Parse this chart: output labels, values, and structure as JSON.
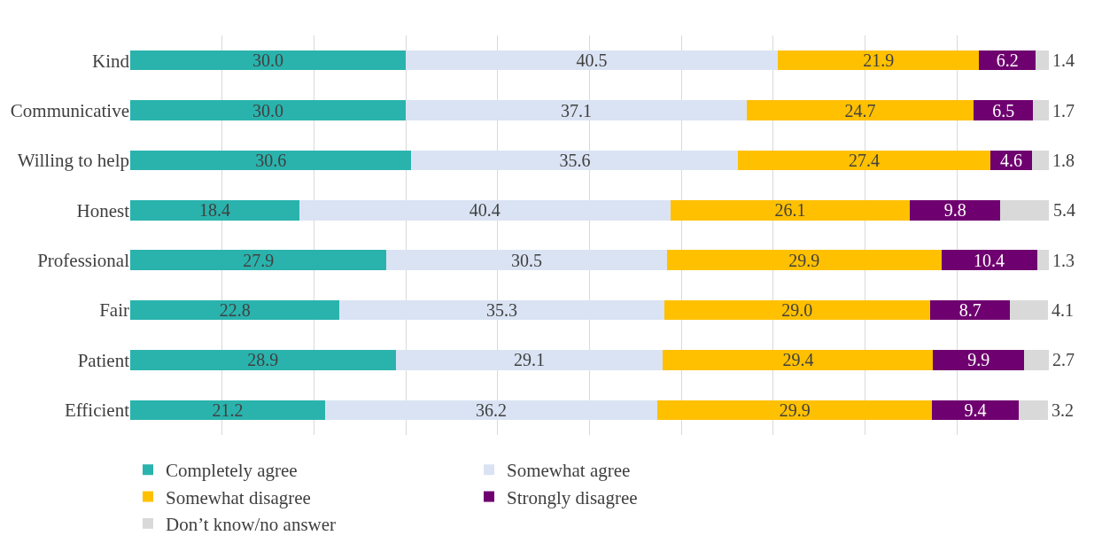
{
  "chart_data": {
    "type": "bar",
    "orientation": "horizontal",
    "stacked": true,
    "categories": [
      "Kind",
      "Communicative",
      "Willing to help",
      "Honest",
      "Professional",
      "Fair",
      "Patient",
      "Efficient"
    ],
    "series": [
      {
        "name": "Completely agree",
        "color": "#2ab3ad",
        "values": [
          30.0,
          30.0,
          30.6,
          18.4,
          27.9,
          22.8,
          28.9,
          21.2
        ],
        "value_labels": [
          "30.0",
          "30.0",
          "30.6",
          "18.4",
          "27.9",
          "22.8",
          "28.9",
          "21.2"
        ]
      },
      {
        "name": "Somewhat agree",
        "color": "#dae3f3",
        "values": [
          40.5,
          37.1,
          35.6,
          40.4,
          30.5,
          35.3,
          29.1,
          36.2
        ],
        "value_labels": [
          "40.5",
          "37.1",
          "35.6",
          "40.4",
          "30.5",
          "35.3",
          "29.1",
          "36.2"
        ]
      },
      {
        "name": "Somewhat disagree",
        "color": "#ffc000",
        "values": [
          21.9,
          24.7,
          27.4,
          26.1,
          29.9,
          29.0,
          29.4,
          29.9
        ],
        "value_labels": [
          "21.9",
          "24.7",
          "27.4",
          "26.1",
          "29.9",
          "29.0",
          "29.4",
          "29.9"
        ]
      },
      {
        "name": "Strongly disagree",
        "color": "#6f006f",
        "values": [
          6.2,
          6.5,
          4.6,
          9.8,
          10.4,
          8.7,
          9.9,
          9.4
        ],
        "value_labels": [
          "6.2",
          "6.5",
          "4.6",
          "9.8",
          "10.4",
          "8.7",
          "9.9",
          "9.4"
        ]
      },
      {
        "name": "Don’t know/no answer",
        "color": "#d9d9d9",
        "values": [
          1.4,
          1.7,
          1.8,
          5.4,
          1.3,
          4.1,
          2.7,
          3.2
        ],
        "value_labels": [
          "1.4",
          "1.7",
          "1.8",
          "5.4",
          "1.3",
          "4.1",
          "2.7",
          "3.2"
        ]
      }
    ],
    "xlim": [
      0,
      100
    ],
    "tick_labels": "y",
    "grid": "x",
    "legend": "bottom"
  }
}
